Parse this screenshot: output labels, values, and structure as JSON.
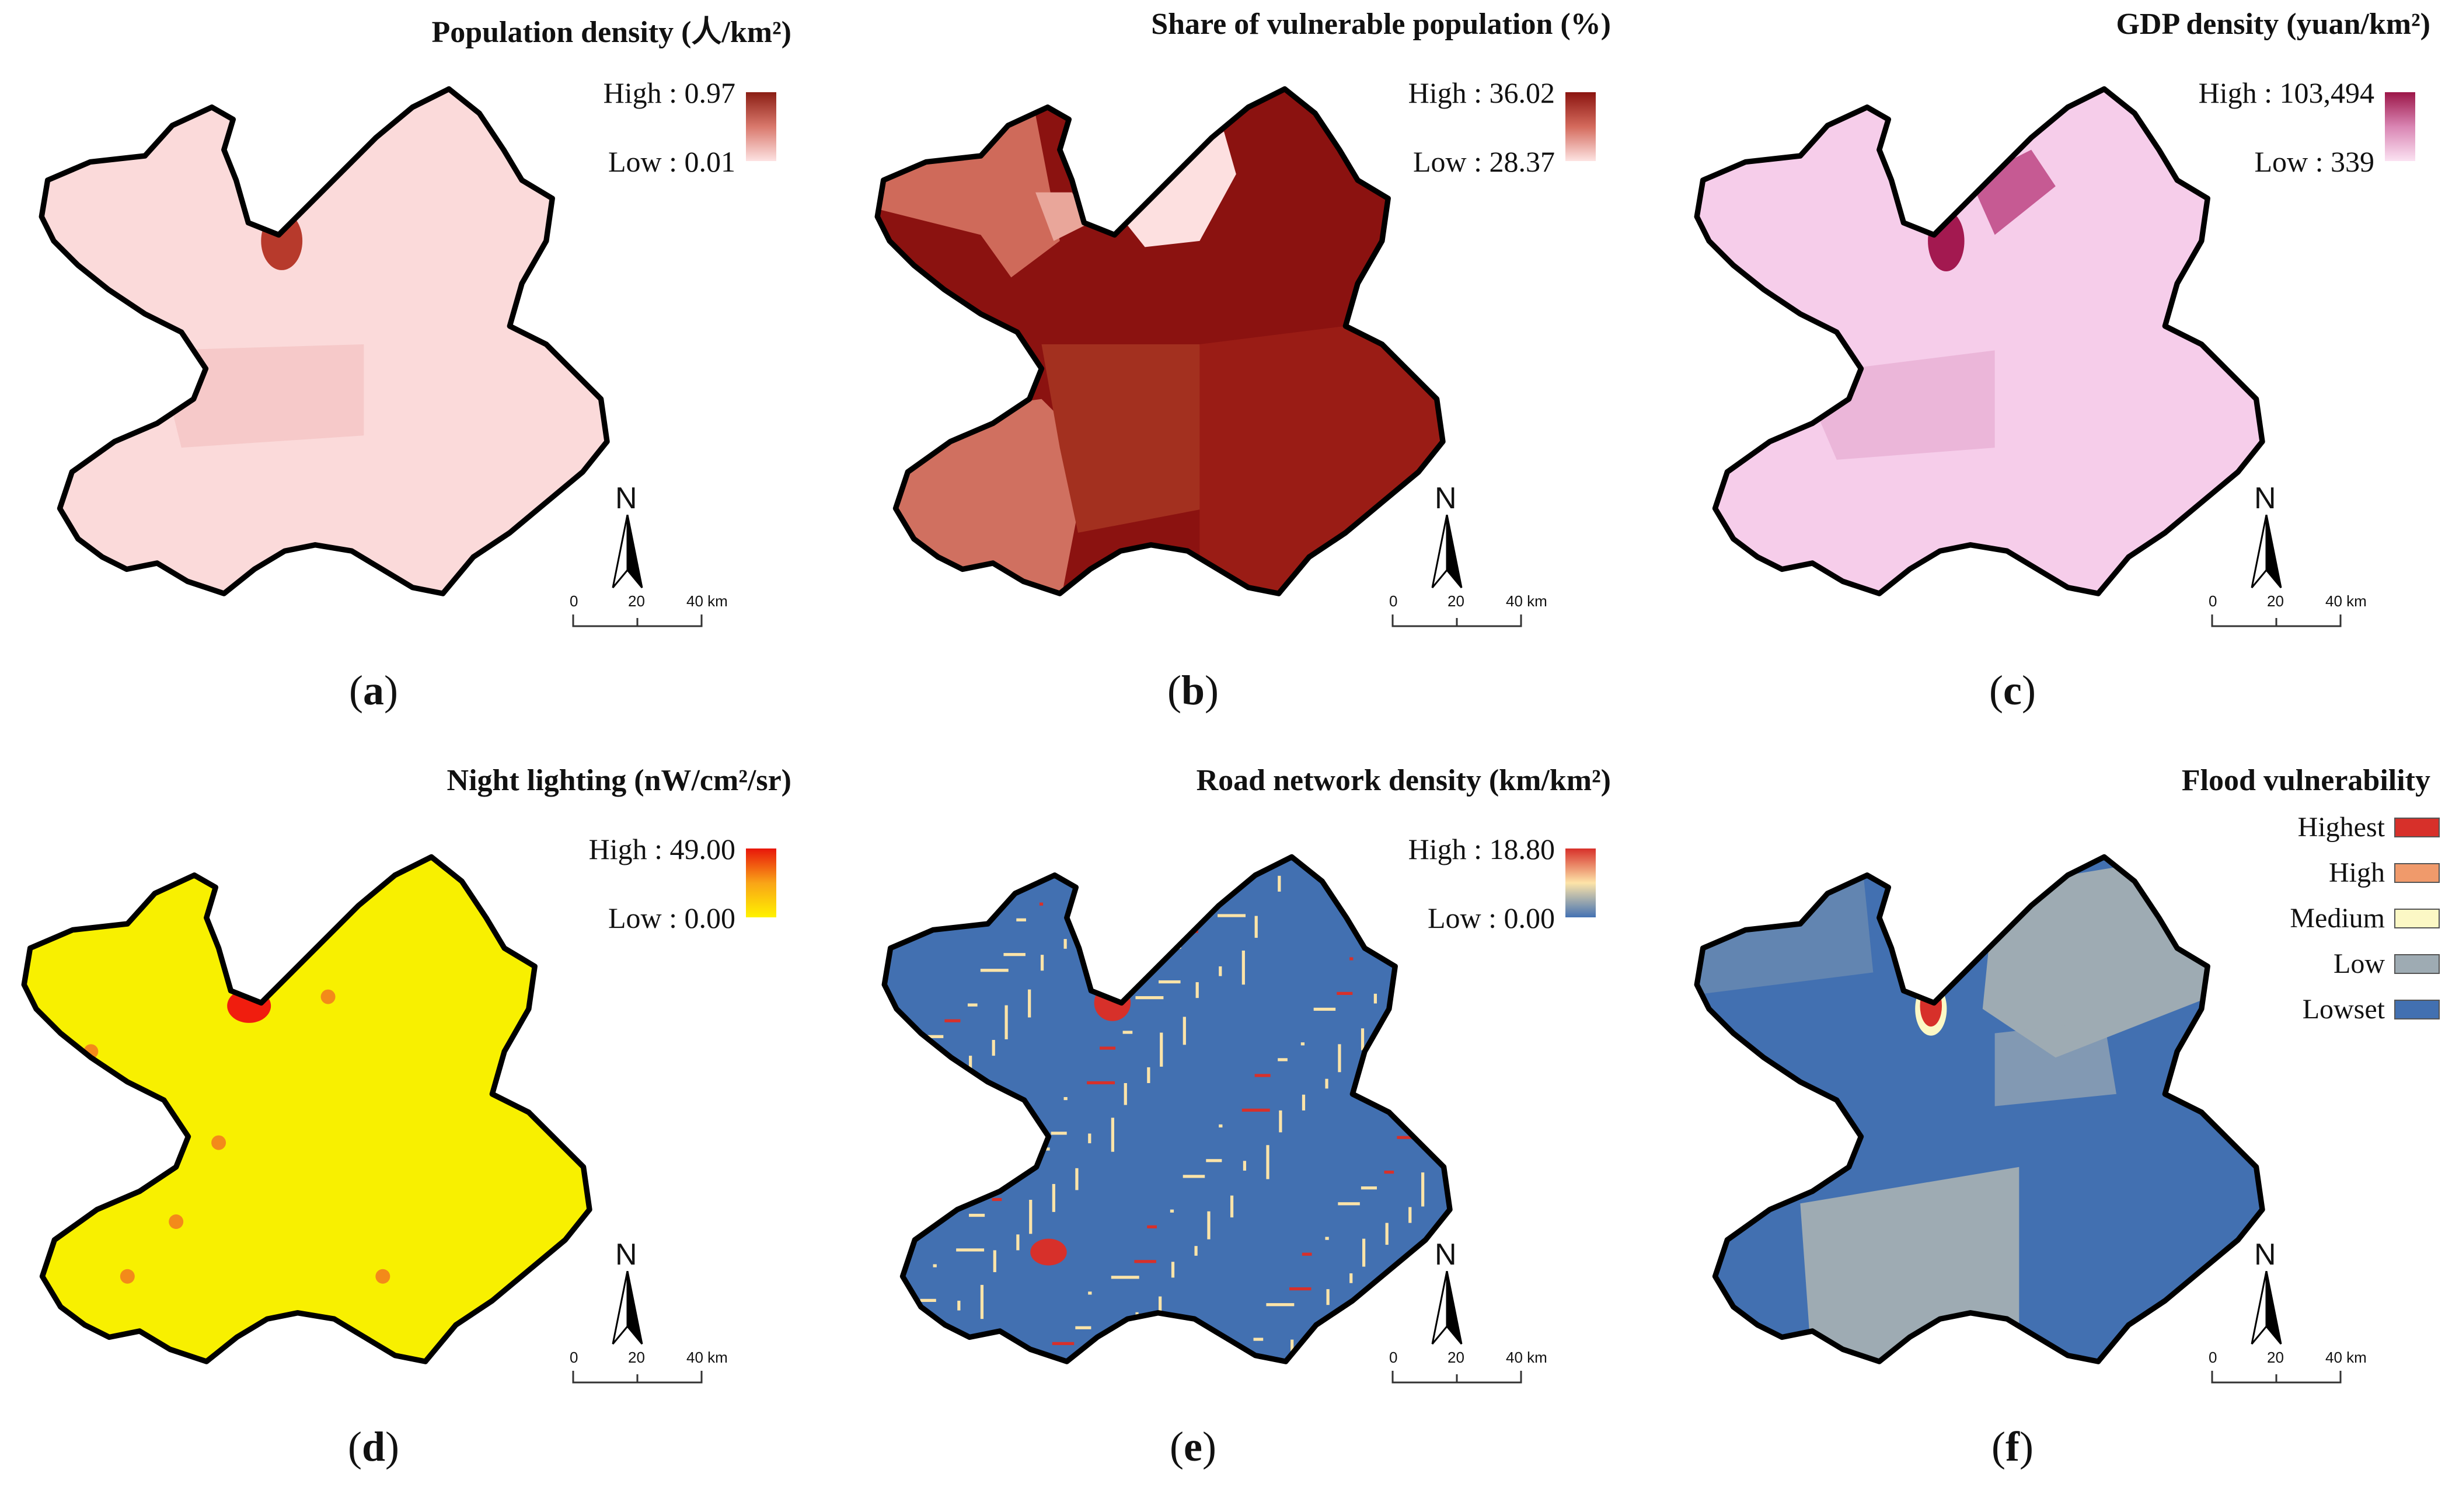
{
  "panels": [
    {
      "id": "a",
      "title": "Population density (人/km²)",
      "label": "a",
      "legend": {
        "high": "High : 0.97",
        "low": "Low : 0.01",
        "ramp": [
          "#8b1e14",
          "#d9786c",
          "#fde2e2"
        ]
      },
      "fill": "#fbdada",
      "hotspot": "#b73a2c"
    },
    {
      "id": "b",
      "title": "Share of vulnerable population (%)",
      "label": "b",
      "legend": {
        "high": "High : 36.02",
        "low": "Low : 28.37",
        "ramp": [
          "#8b1410",
          "#d46a5c",
          "#fde3e2"
        ]
      },
      "fill": "#8b1210",
      "hotspot": "#fde0e0"
    },
    {
      "id": "c",
      "title": "GDP density (yuan/km²)",
      "label": "c",
      "legend": {
        "high": "High : 103,494",
        "low": "Low : 339",
        "ramp": [
          "#9c1648",
          "#d985b3",
          "#fbe2f2"
        ]
      },
      "fill": "#f6cdea",
      "hotspot": "#a31950"
    },
    {
      "id": "d",
      "title": "Night lighting (nW/cm²/sr)",
      "label": "d",
      "legend": {
        "high": "High : 49.00",
        "low": "Low : 0.00",
        "ramp": [
          "#e8160a",
          "#f9a417",
          "#fff200"
        ]
      },
      "fill": "#f8f000",
      "hotspot": "#f01d0e"
    },
    {
      "id": "e",
      "title": "Road network density (km/km²)",
      "label": "e",
      "legend": {
        "high": "High : 18.80",
        "low": "Low : 0.00",
        "ramp": [
          "#d7302a",
          "#fde4a8",
          "#4472b3"
        ]
      },
      "fill": "#4270b1",
      "hotspot": "#d7302a"
    },
    {
      "id": "f",
      "title": "Flood vulnerability",
      "label": "f",
      "fill": "#4270b1",
      "hotspot": "#d7302a",
      "categories": [
        {
          "name": "Highest",
          "color": "#d7302a"
        },
        {
          "name": "High",
          "color": "#f09a6b"
        },
        {
          "name": "Medium",
          "color": "#fcf8c5"
        },
        {
          "name": "Low",
          "color": "#9eabb3"
        },
        {
          "name": "Lowset",
          "color": "#4270b1"
        }
      ]
    }
  ],
  "common": {
    "north": "N",
    "scale_labels": [
      "0",
      "20",
      "40 km"
    ]
  }
}
